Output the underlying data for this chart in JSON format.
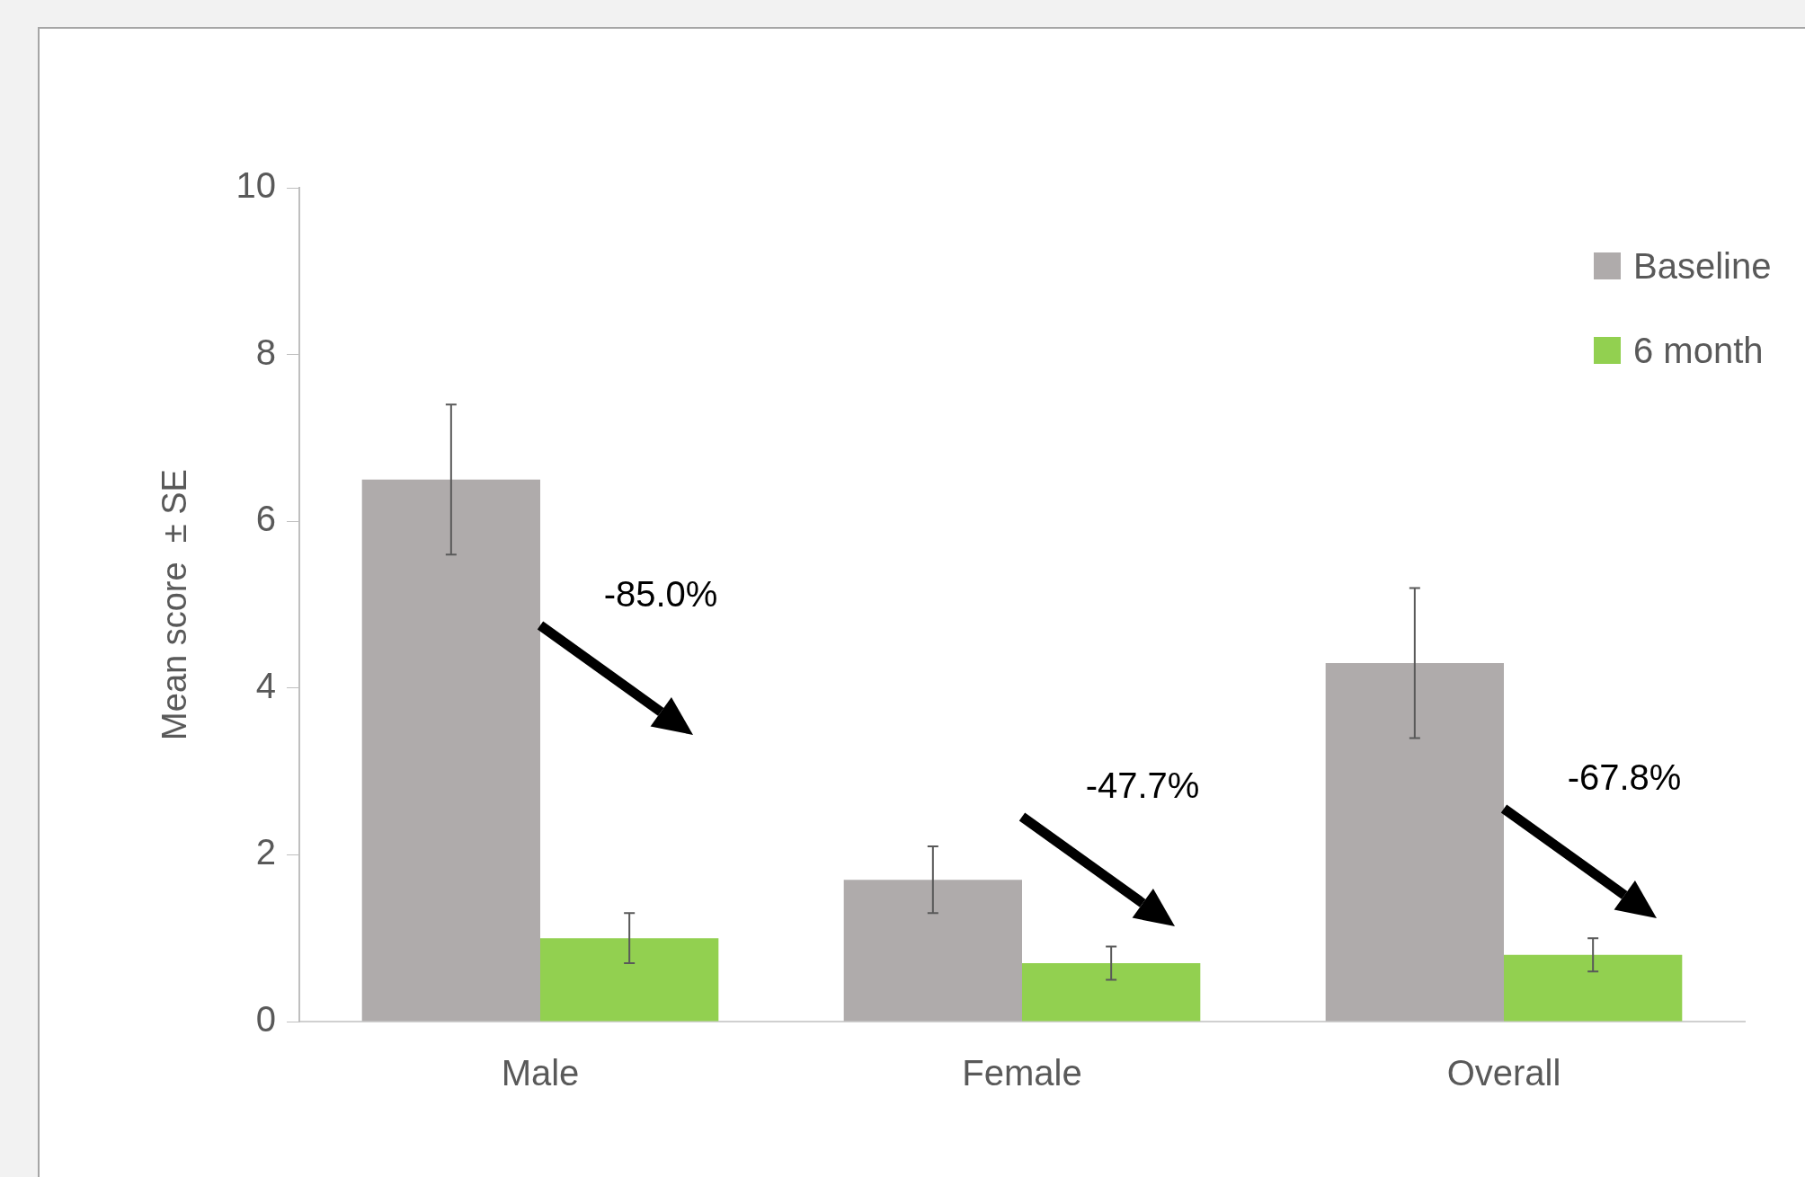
{
  "chart_data": {
    "type": "bar",
    "ylabel": "Mean score  ± SE",
    "categories": [
      "Male",
      "Female",
      "Overall"
    ],
    "series": [
      {
        "name": "Baseline",
        "color": "#afabab",
        "values": [
          6.5,
          1.7,
          4.3
        ],
        "errors": [
          0.9,
          0.4,
          0.9
        ]
      },
      {
        "name": "6 month",
        "color": "#92d050",
        "values": [
          1.0,
          0.7,
          0.8
        ],
        "errors": [
          0.3,
          0.2,
          0.2
        ]
      }
    ],
    "ylim": [
      0,
      10
    ],
    "yticks": [
      0,
      2,
      4,
      6,
      8,
      10
    ],
    "grid": false,
    "legend": "top right",
    "annotations": [
      "-85.0%",
      "-47.7%",
      "-67.8%"
    ]
  }
}
